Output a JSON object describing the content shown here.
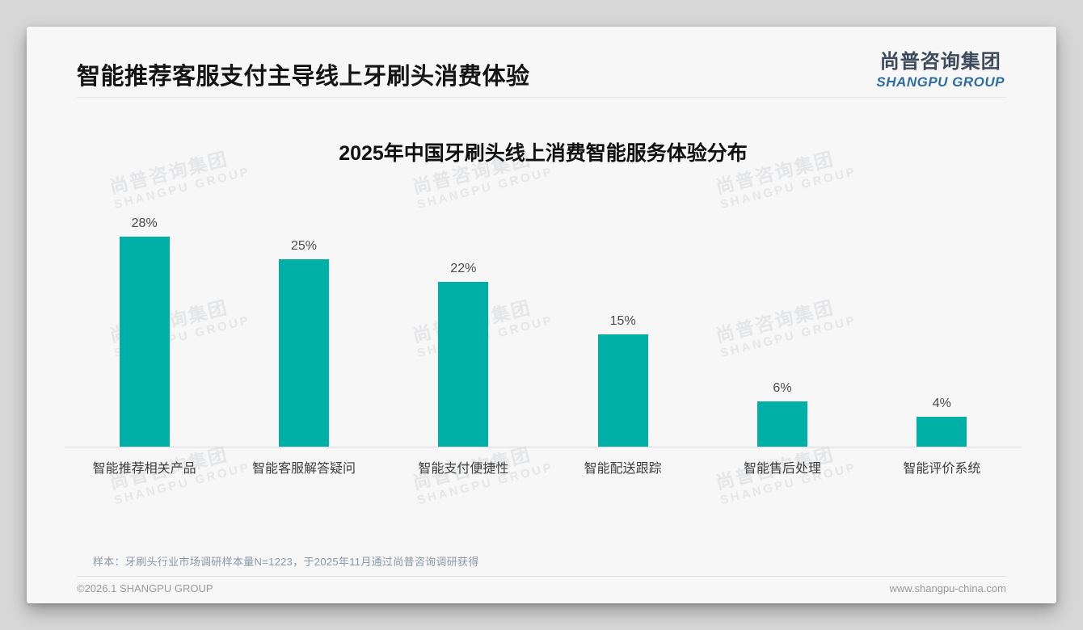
{
  "page_title": "智能推荐客服支付主导线上牙刷头消费体验",
  "logo": {
    "cn": "尚普咨询集团",
    "en": "SHANGPU GROUP"
  },
  "watermark": {
    "line1": "尚普咨询集团",
    "line2": "SHANGPU GROUP"
  },
  "chart_data": {
    "type": "bar",
    "title": "2025年中国牙刷头线上消费智能服务体验分布",
    "categories": [
      "智能推荐相关产品",
      "智能客服解答疑问",
      "智能支付便捷性",
      "智能配送跟踪",
      "智能售后处理",
      "智能评价系统"
    ],
    "values": [
      28,
      25,
      22,
      15,
      6,
      4
    ],
    "unit": "%",
    "value_labels": [
      "28%",
      "25%",
      "22%",
      "15%",
      "6%",
      "4%"
    ],
    "bar_color": "#00b0a6",
    "ylim": [
      0,
      30
    ],
    "grid": false,
    "legend": "none",
    "xlabel": "",
    "ylabel": ""
  },
  "footnote": "样本：牙刷头行业市场调研样本量N=1223，于2025年11月通过尚普咨询调研获得",
  "footer": {
    "left": "©2026.1 SHANGPU GROUP",
    "right": "www.shangpu-china.com"
  },
  "colors": {
    "accent_teal": "#00b0a6",
    "logo_blue": "#2e6da4",
    "card_bg": "#f7f7f7",
    "page_bg": "#d7d7d7"
  }
}
